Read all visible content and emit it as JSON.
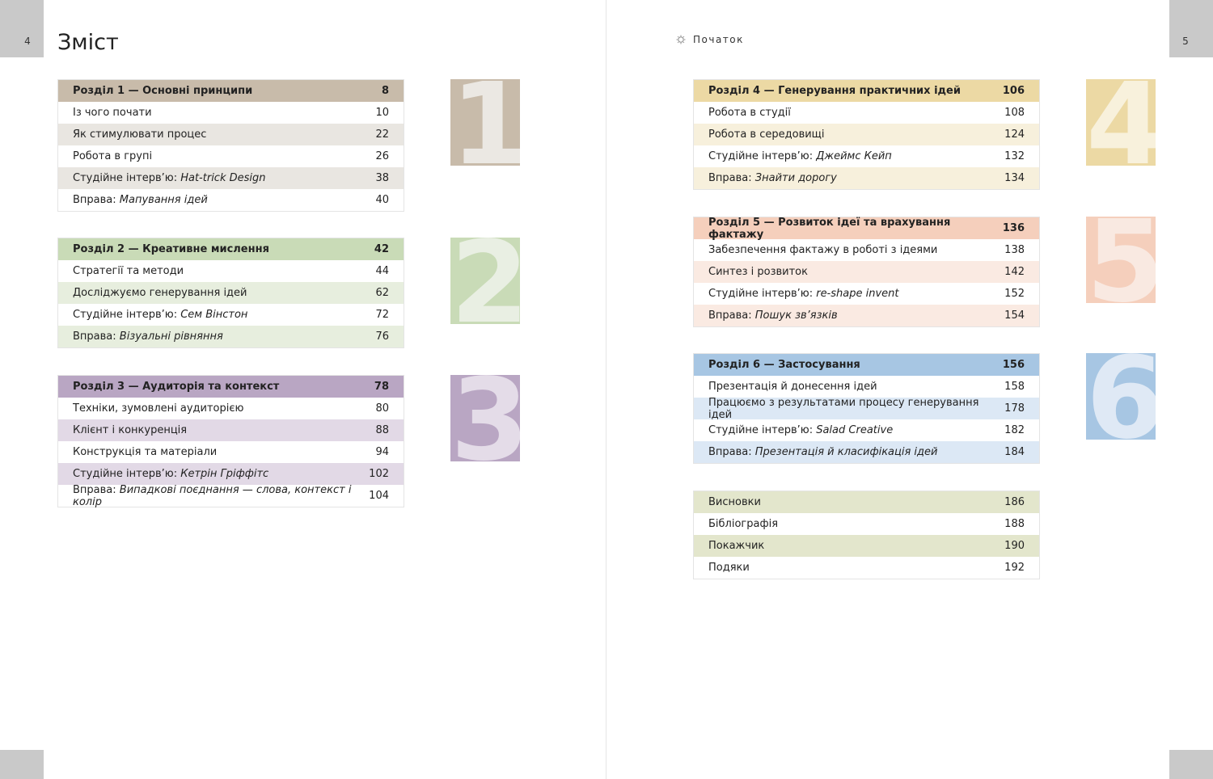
{
  "left_page": {
    "page_number": "4",
    "title": "Зміст"
  },
  "right_page": {
    "page_number": "5",
    "start_label": "Початок"
  },
  "sections": [
    {
      "digit": "1",
      "colors": {
        "head": "#c8bbaa",
        "stripe": "#e9e6e1",
        "tile": "#c8bbaa",
        "digit": "#ebe8e3"
      },
      "head": {
        "label": "Розділ 1 — Основні принципи",
        "page": "8"
      },
      "items": [
        {
          "label": "Із чого почати",
          "page": "10"
        },
        {
          "label": "Як стимулювати процес",
          "page": "22"
        },
        {
          "label": "Робота в групі",
          "page": "26"
        },
        {
          "prefix": "Студійне інтерв’ю: ",
          "italic": "Hat-trick Design",
          "page": "38"
        },
        {
          "prefix": "Вправа: ",
          "italic": "Мапування ідей",
          "page": "40"
        }
      ]
    },
    {
      "digit": "2",
      "colors": {
        "head": "#c9dbb7",
        "stripe": "#e7eede",
        "tile": "#c9dbb7",
        "digit": "#e9efe3"
      },
      "head": {
        "label": "Розділ 2 — Креативне мислення",
        "page": "42"
      },
      "items": [
        {
          "label": "Стратегії та методи",
          "page": "44"
        },
        {
          "label": "Досліджуємо генерування ідей",
          "page": "62"
        },
        {
          "prefix": "Студійне інтерв’ю: ",
          "italic": "Сем Вінстон",
          "page": "72"
        },
        {
          "prefix": "Вправа: ",
          "italic": "Візуальні рівняння",
          "page": "76"
        }
      ]
    },
    {
      "digit": "3",
      "colors": {
        "head": "#b9a6c3",
        "stripe": "#e2d9e6",
        "tile": "#b9a6c3",
        "digit": "#e4dce8"
      },
      "head": {
        "label": "Розділ 3 — Аудиторія та контекст",
        "page": "78"
      },
      "items": [
        {
          "label": "Техніки, зумовлені аудиторією",
          "page": "80"
        },
        {
          "label": "Клієнт і конкуренція",
          "page": "88"
        },
        {
          "label": "Конструкція та матеріали",
          "page": "94"
        },
        {
          "prefix": "Студійне інтерв’ю: ",
          "italic": "Кетрін Гріффітс",
          "page": "102"
        },
        {
          "prefix": "Вправа: ",
          "italic": "Випадкові поєднання — слова, контекст і колір",
          "page": "104"
        }
      ]
    },
    {
      "digit": "4",
      "colors": {
        "head": "#ecd9a4",
        "stripe": "#f7f0dc",
        "tile": "#ecd9a4",
        "digit": "#f8f1dc"
      },
      "head": {
        "label": "Розділ 4 — Генерування практичних ідей",
        "page": "106"
      },
      "items": [
        {
          "label": "Робота в студії",
          "page": "108"
        },
        {
          "label": "Робота в середовищі",
          "page": "124"
        },
        {
          "prefix": "Студійне інтерв’ю: ",
          "italic": "Джеймс Кейп",
          "page": "132"
        },
        {
          "prefix": "Вправа: ",
          "italic": "Знайти дорогу",
          "page": "134"
        }
      ]
    },
    {
      "digit": "5",
      "colors": {
        "head": "#f5cfbc",
        "stripe": "#faeae2",
        "tile": "#f5cfbc",
        "digit": "#f9e9e1"
      },
      "head": {
        "label": "Розділ 5 — Розвиток ідеї та врахування фактажу",
        "page": "136"
      },
      "items": [
        {
          "label": "Забезпечення фактажу в роботі з ідеями",
          "page": "138"
        },
        {
          "label": "Синтез і розвиток",
          "page": "142"
        },
        {
          "prefix": "Студійне інтерв’ю: ",
          "italic": "re-shape invent",
          "page": "152"
        },
        {
          "prefix": "Вправа: ",
          "italic": "Пошук зв’язків",
          "page": "154"
        }
      ]
    },
    {
      "digit": "6",
      "colors": {
        "head": "#a7c6e3",
        "stripe": "#dce8f5",
        "tile": "#a7c6e3",
        "digit": "#dfe9f5"
      },
      "head": {
        "label": "Розділ 6 — Застосування",
        "page": "156"
      },
      "items": [
        {
          "label": "Презентація й донесення ідей",
          "page": "158"
        },
        {
          "label": "Працюємо з результатами процесу генерування ідей",
          "page": "178"
        },
        {
          "prefix": "Студійне інтерв’ю: ",
          "italic": "Salad Creative",
          "page": "182"
        },
        {
          "prefix": "Вправа: ",
          "italic": "Презентація й класифікація ідей",
          "page": "184"
        }
      ]
    }
  ],
  "backmatter": {
    "stripe_color": "#e3e6cc",
    "items": [
      {
        "label": "Висновки",
        "page": "186"
      },
      {
        "label": "Бібліографія",
        "page": "188"
      },
      {
        "label": "Покажчик",
        "page": "190"
      },
      {
        "label": "Подяки",
        "page": "192"
      }
    ]
  }
}
